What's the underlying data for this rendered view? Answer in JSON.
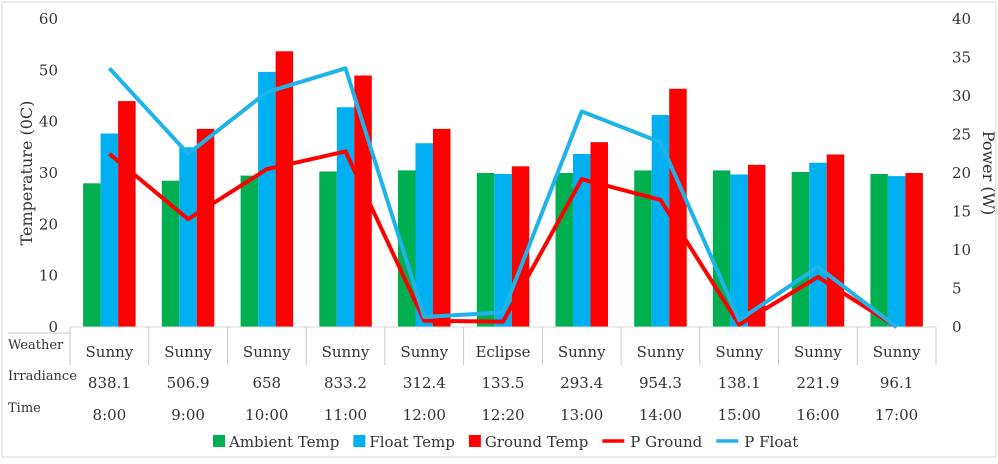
{
  "chart_data": {
    "type": "bar",
    "categories": [
      "8:00",
      "9:00",
      "10:00",
      "11:00",
      "12:00",
      "12:20",
      "13:00",
      "14:00",
      "15:00",
      "16:00",
      "17:00"
    ],
    "ylabel": "Temperature (0C)",
    "y2label": "Power (W)",
    "ylim": [
      0,
      60
    ],
    "y2lim": [
      0,
      40
    ],
    "yticks": [
      "0",
      "10",
      "20",
      "30",
      "40",
      "50",
      "60"
    ],
    "y2ticks": [
      "0",
      "5",
      "10",
      "15",
      "20",
      "25",
      "30",
      "35",
      "40"
    ],
    "grid": false,
    "legend_position": "bottom",
    "series": [
      {
        "name": "Ambient Temp",
        "kind": "bar",
        "axis": "left",
        "color": "#00b050",
        "values": [
          28,
          28.5,
          29.5,
          30.3,
          30.5,
          30,
          30,
          30.5,
          30.5,
          30.2,
          29.8
        ]
      },
      {
        "name": "Float Temp",
        "kind": "bar",
        "axis": "left",
        "color": "#00b0f0",
        "values": [
          37.7,
          35,
          49.7,
          42.8,
          35.8,
          29.8,
          33.7,
          41.3,
          29.7,
          32,
          29.4
        ]
      },
      {
        "name": "Ground Temp",
        "kind": "bar",
        "axis": "left",
        "color": "#ff0000",
        "values": [
          44,
          38.6,
          53.7,
          49,
          38.6,
          31.3,
          36,
          46.4,
          31.6,
          33.6,
          30
        ]
      },
      {
        "name": "P Ground",
        "kind": "line",
        "axis": "right",
        "color": "#ff0000",
        "values": [
          22.5,
          14,
          20.5,
          22.8,
          0.8,
          0.7,
          19.2,
          16.5,
          0.3,
          6.5,
          0
        ]
      },
      {
        "name": "P Float",
        "kind": "line",
        "axis": "right",
        "color": "#1eb4ea",
        "values": [
          33.6,
          22.5,
          30.5,
          33.6,
          1.3,
          1.9,
          28,
          24,
          0.9,
          7.8,
          0
        ]
      }
    ],
    "table": {
      "row_labels": [
        "Weather",
        "Irradiance",
        "Time"
      ],
      "weather": [
        "Sunny",
        "Sunny",
        "Sunny",
        "Sunny",
        "Sunny",
        "Eclipse",
        "Sunny",
        "Sunny",
        "Sunny",
        "Sunny",
        "Sunny"
      ],
      "irradiance": [
        "838.1",
        "506.9",
        "658",
        "833.2",
        "312.4",
        "133.5",
        "293.4",
        "954.3",
        "138.1",
        "221.9",
        "96.1"
      ],
      "time": [
        "8:00",
        "9:00",
        "10:00",
        "11:00",
        "12:00",
        "12:20",
        "13:00",
        "14:00",
        "15:00",
        "16:00",
        "17:00"
      ]
    }
  }
}
